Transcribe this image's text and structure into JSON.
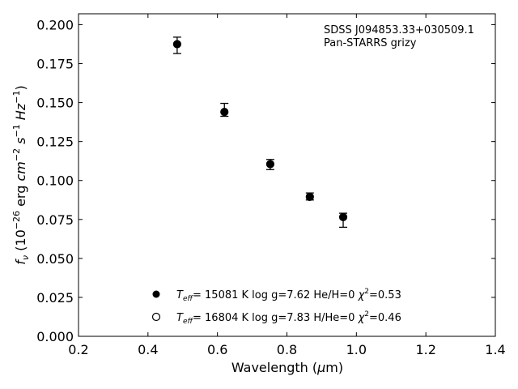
{
  "chart_data": {
    "type": "scatter",
    "annotation_lines": [
      "SDSS J094853.33+030509.1",
      "Pan-STARRS grizy"
    ],
    "xlabel": {
      "pre": "Wavelength (",
      "greek": "μ",
      "post": "m)"
    },
    "ylabel": {
      "f": "f",
      "nu": "ν",
      "body": " (10",
      "e1": "−26",
      "erg": " erg ",
      "cm": "cm",
      "e2": "−2",
      "s": " s",
      "e3": "−1",
      "hz": " Hz",
      "e4": "−1",
      "close": ")"
    },
    "xlim": [
      0.2,
      1.4
    ],
    "ylim": [
      0.0,
      0.207
    ],
    "xticks": [
      0.2,
      0.4,
      0.6,
      0.8,
      1.0,
      1.2,
      1.4
    ],
    "xtick_labels": [
      "0.2",
      "0.4",
      "0.6",
      "0.8",
      "1.0",
      "1.2",
      "1.4"
    ],
    "yticks": [
      0.0,
      0.025,
      0.05,
      0.075,
      0.1,
      0.125,
      0.15,
      0.175,
      0.2
    ],
    "ytick_labels": [
      "0.000",
      "0.025",
      "0.050",
      "0.075",
      "0.100",
      "0.125",
      "0.150",
      "0.175",
      "0.200"
    ],
    "grid": false,
    "legend_position": "lower-center",
    "series": [
      {
        "marker": "filled-circle",
        "x": [
          0.484,
          0.62,
          0.752,
          0.866,
          0.962
        ],
        "y": [
          0.1875,
          0.144,
          0.1105,
          0.0895,
          0.0765
        ],
        "y_err_low": [
          0.1815,
          0.1412,
          0.107,
          0.0875,
          0.07
        ],
        "y_err_high": [
          0.192,
          0.1495,
          0.1135,
          0.092,
          0.079
        ],
        "legend": {
          "teff": "T",
          "teff_sub": "eff",
          "rest": "= 15081 K  log g=7.62  He/H=0  ",
          "chi": "χ",
          "chi_sup": "2",
          "chi_val": "=0.53"
        }
      },
      {
        "marker": "open-circle",
        "x": [],
        "y": [],
        "legend": {
          "teff": "T",
          "teff_sub": "eff",
          "rest": "= 16804 K  log g=7.83  H/He=0  ",
          "chi": "χ",
          "chi_sup": "2",
          "chi_val": "=0.46"
        }
      }
    ]
  }
}
